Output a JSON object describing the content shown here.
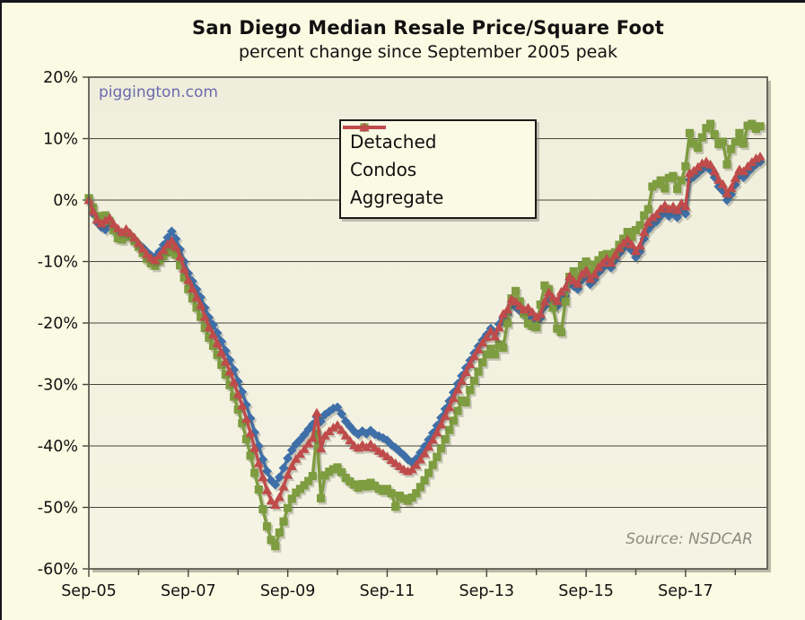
{
  "chart": {
    "title": "San Diego Median Resale Price/Square Foot",
    "subtitle": "percent change since September 2005 peak",
    "watermark": "piggington.com",
    "source": "Source: NSDCAR",
    "colors": {
      "detached": "#3E6FA8",
      "condos": "#7E9C40",
      "aggregate": "#BF4B4B",
      "grid": "#45453c",
      "frame": "#5d5d54",
      "shadow": "#8f8f82",
      "page_bg": "#FBFAE2",
      "plot_bg_top": "#EFEEDB",
      "plot_bg_bottom": "#F5F4E4",
      "text": "#111111",
      "watermark_color": "#6A6AAE",
      "source_color": "#8B8B80"
    },
    "legend": [
      {
        "label": "Detached",
        "marker": "diamond"
      },
      {
        "label": "Condos",
        "marker": "square"
      },
      {
        "label": "Aggregate",
        "marker": "triangle"
      }
    ]
  },
  "chart_data": {
    "type": "line",
    "title": "San Diego Median Resale Price/Square Foot",
    "subtitle": "percent change since September 2005 peak",
    "x_unit": "months, monthly data starting Sep-2005",
    "x_tick_labels": [
      "Sep-05",
      "Sep-07",
      "Sep-09",
      "Sep-11",
      "Sep-13",
      "Sep-15",
      "Sep-17"
    ],
    "x_major_tick_every_months": 24,
    "x_minor_tick_every_months": 12,
    "y_ticks": [
      20,
      10,
      0,
      -10,
      -20,
      -30,
      -40,
      -50,
      -60
    ],
    "y_tick_suffix": "%",
    "ylim": [
      -60,
      20
    ],
    "grid": "horizontal-only",
    "legend_position": "inside-top-center",
    "series": [
      {
        "name": "Detached",
        "marker": "diamond",
        "color_key": "detached",
        "values": [
          0.0,
          -2.2,
          -3.6,
          -4.4,
          -4.8,
          -3.7,
          -4.5,
          -5.6,
          -6.1,
          -5.2,
          -5.8,
          -6.4,
          -7.1,
          -7.7,
          -8.4,
          -9.0,
          -9.3,
          -8.4,
          -7.3,
          -6.1,
          -5.1,
          -6.3,
          -8.0,
          -10.0,
          -11.9,
          -13.2,
          -14.5,
          -15.8,
          -17.5,
          -19.1,
          -20.3,
          -21.6,
          -23.0,
          -24.5,
          -26.0,
          -27.6,
          -29.5,
          -31.2,
          -33.3,
          -35.5,
          -37.8,
          -40.0,
          -42.2,
          -44.1,
          -45.6,
          -46.3,
          -45.1,
          -43.6,
          -42.0,
          -40.7,
          -39.7,
          -39.0,
          -38.2,
          -37.3,
          -36.5,
          -35.3,
          -36.0,
          -34.9,
          -34.4,
          -33.9,
          -33.7,
          -34.8,
          -36.0,
          -36.8,
          -37.6,
          -38.1,
          -37.6,
          -38.0,
          -37.5,
          -38.1,
          -38.4,
          -38.7,
          -39.1,
          -39.8,
          -40.3,
          -40.9,
          -41.5,
          -42.2,
          -42.7,
          -42.1,
          -41.1,
          -40.1,
          -39.0,
          -37.9,
          -36.7,
          -35.4,
          -34.0,
          -32.7,
          -31.3,
          -29.9,
          -28.6,
          -27.3,
          -26.1,
          -24.9,
          -23.8,
          -22.8,
          -21.9,
          -20.9,
          -21.7,
          -20.2,
          -19.3,
          -18.6,
          -17.0,
          -17.4,
          -18.0,
          -18.6,
          -18.4,
          -19.3,
          -19.9,
          -19.2,
          -17.3,
          -15.9,
          -16.6,
          -17.3,
          -16.4,
          -15.6,
          -13.4,
          -14.0,
          -14.5,
          -13.0,
          -12.4,
          -13.7,
          -13.0,
          -11.8,
          -11.1,
          -10.4,
          -11.0,
          -9.8,
          -8.7,
          -7.9,
          -7.3,
          -8.2,
          -9.3,
          -8.4,
          -6.3,
          -4.8,
          -4.0,
          -3.5,
          -2.6,
          -2.0,
          -2.6,
          -2.2,
          -2.8,
          -1.7,
          -2.2,
          3.3,
          3.8,
          4.4,
          5.0,
          5.4,
          4.9,
          3.7,
          2.2,
          1.5,
          0.0,
          0.9,
          2.5,
          4.0,
          3.7,
          4.5,
          5.2,
          5.8,
          6.2
        ]
      },
      {
        "name": "Condos",
        "marker": "square",
        "color_key": "condos",
        "values": [
          0.3,
          -1.2,
          -2.6,
          -3.1,
          -2.5,
          -3.4,
          -4.9,
          -6.2,
          -6.4,
          -5.3,
          -6.0,
          -6.7,
          -7.6,
          -8.6,
          -9.6,
          -10.3,
          -10.7,
          -9.9,
          -9.1,
          -8.5,
          -7.9,
          -8.9,
          -10.6,
          -12.6,
          -14.5,
          -16.0,
          -17.5,
          -19.0,
          -20.8,
          -22.4,
          -23.7,
          -25.2,
          -26.8,
          -28.4,
          -30.1,
          -32.0,
          -34.1,
          -36.3,
          -38.9,
          -41.6,
          -44.4,
          -47.1,
          -50.3,
          -53.1,
          -55.3,
          -56.3,
          -54.1,
          -52.3,
          -50.1,
          -48.6,
          -47.6,
          -47.0,
          -46.4,
          -45.7,
          -44.9,
          -38.0,
          -48.5,
          -44.8,
          -44.2,
          -43.8,
          -43.5,
          -44.3,
          -45.2,
          -45.8,
          -46.3,
          -46.8,
          -46.2,
          -46.6,
          -46.0,
          -46.5,
          -47.0,
          -47.3,
          -47.0,
          -47.7,
          -49.9,
          -48.1,
          -48.6,
          -48.9,
          -48.4,
          -47.7,
          -46.7,
          -45.6,
          -44.4,
          -43.1,
          -41.8,
          -40.4,
          -38.9,
          -37.4,
          -35.9,
          -34.3,
          -32.6,
          -32.9,
          -30.9,
          -29.4,
          -27.9,
          -26.4,
          -25.1,
          -24.2,
          -25.1,
          -23.5,
          -24.0,
          -20.0,
          -16.0,
          -14.8,
          -16.5,
          -18.5,
          -20.1,
          -20.5,
          -20.7,
          -17.0,
          -13.9,
          -14.5,
          -17.5,
          -20.9,
          -21.5,
          -16.5,
          -12.5,
          -11.6,
          -12.5,
          -10.7,
          -10.0,
          -11.7,
          -10.5,
          -9.8,
          -9.0,
          -8.8,
          -9.5,
          -8.5,
          -7.3,
          -6.3,
          -5.2,
          -6.0,
          -4.9,
          -4.1,
          -2.5,
          -1.5,
          2.2,
          2.6,
          3.2,
          1.9,
          3.6,
          3.9,
          1.8,
          3.2,
          5.5,
          10.9,
          9.2,
          8.5,
          10.2,
          11.7,
          12.4,
          10.7,
          9.1,
          9.5,
          5.8,
          8.3,
          9.5,
          10.9,
          9.2,
          12.1,
          12.4,
          11.6,
          12.0
        ]
      },
      {
        "name": "Aggregate",
        "marker": "triangle",
        "color_key": "aggregate",
        "values": [
          0.0,
          -1.8,
          -3.2,
          -3.8,
          -3.3,
          -2.9,
          -3.9,
          -4.6,
          -5.2,
          -4.7,
          -5.4,
          -6.1,
          -7.0,
          -7.9,
          -8.8,
          -9.4,
          -9.8,
          -9.0,
          -8.1,
          -7.2,
          -6.6,
          -7.6,
          -9.2,
          -11.2,
          -13.0,
          -14.4,
          -15.8,
          -17.1,
          -19.0,
          -20.7,
          -21.9,
          -23.3,
          -24.8,
          -26.3,
          -27.9,
          -29.6,
          -31.6,
          -33.4,
          -35.6,
          -37.9,
          -40.3,
          -42.8,
          -45.1,
          -47.2,
          -48.9,
          -49.6,
          -48.3,
          -46.6,
          -44.7,
          -43.3,
          -42.1,
          -41.3,
          -40.5,
          -39.6,
          -38.7,
          -34.6,
          -40.4,
          -38.3,
          -37.6,
          -37.0,
          -36.6,
          -37.4,
          -38.3,
          -39.1,
          -39.9,
          -40.3,
          -39.8,
          -40.2,
          -39.7,
          -40.3,
          -40.8,
          -41.2,
          -41.7,
          -42.3,
          -42.8,
          -43.3,
          -43.8,
          -44.1,
          -43.8,
          -43.1,
          -42.2,
          -41.2,
          -40.1,
          -39.0,
          -37.8,
          -36.5,
          -35.1,
          -33.7,
          -32.2,
          -30.8,
          -29.4,
          -28.0,
          -26.7,
          -25.4,
          -24.3,
          -23.2,
          -22.3,
          -21.3,
          -22.2,
          -20.7,
          -18.5,
          -17.8,
          -16.1,
          -16.5,
          -17.2,
          -17.8,
          -17.5,
          -18.2,
          -19.0,
          -18.5,
          -16.5,
          -15.0,
          -15.8,
          -16.4,
          -14.9,
          -14.2,
          -12.4,
          -13.1,
          -13.6,
          -12.0,
          -11.4,
          -12.8,
          -12.1,
          -10.9,
          -10.2,
          -9.5,
          -10.2,
          -8.9,
          -7.8,
          -7.0,
          -6.4,
          -7.2,
          -8.3,
          -7.4,
          -5.2,
          -3.6,
          -2.8,
          -2.3,
          -1.4,
          -0.8,
          -1.4,
          -1.0,
          -1.6,
          -0.5,
          -1.0,
          4.4,
          4.8,
          5.4,
          6.0,
          6.3,
          5.8,
          4.7,
          3.3,
          2.6,
          1.1,
          2.0,
          3.6,
          5.0,
          4.7,
          5.5,
          6.2,
          6.8,
          7.1
        ]
      }
    ]
  }
}
